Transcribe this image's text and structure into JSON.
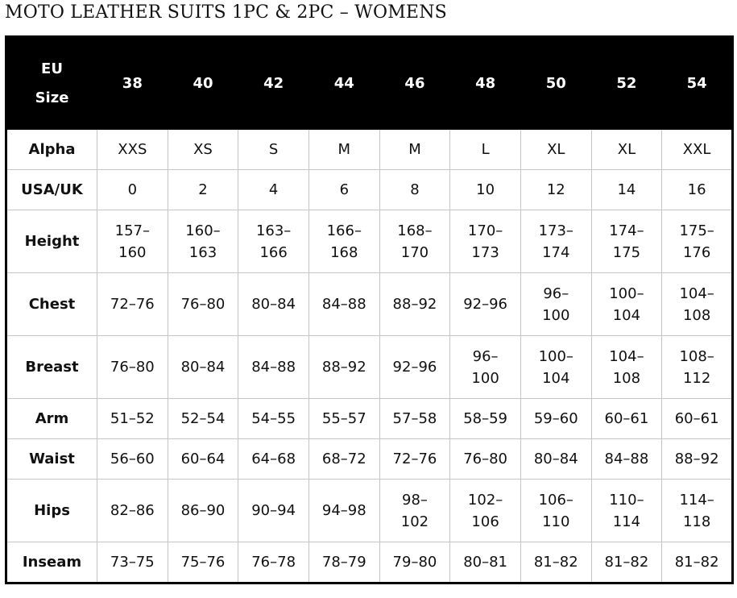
{
  "title": "MOTO LEATHER SUITS 1PC & 2PC – WOMENS",
  "header": {
    "label_line1": "EU",
    "label_line2": "Size",
    "sizes": [
      "38",
      "40",
      "42",
      "44",
      "46",
      "48",
      "50",
      "52",
      "54"
    ]
  },
  "rows": [
    {
      "label": "Alpha",
      "values": [
        "XXS",
        "XS",
        "S",
        "M",
        "M",
        "L",
        "XL",
        "XL",
        "XXL"
      ]
    },
    {
      "label": "USA/UK",
      "values": [
        "0",
        "2",
        "4",
        "6",
        "8",
        "10",
        "12",
        "14",
        "16"
      ]
    },
    {
      "label": "Height",
      "values": [
        "157–160",
        "160–163",
        "163–166",
        "166–168",
        "168–170",
        "170–173",
        "173–174",
        "174–175",
        "175–176"
      ]
    },
    {
      "label": "Chest",
      "values": [
        "72–76",
        "76–80",
        "80–84",
        "84–88",
        "88–92",
        "92–96",
        "96–100",
        "100–104",
        "104–108"
      ]
    },
    {
      "label": "Breast",
      "values": [
        "76–80",
        "80–84",
        "84–88",
        "88–92",
        "92–96",
        "96–100",
        "100–104",
        "104–108",
        "108–112"
      ]
    },
    {
      "label": "Arm",
      "values": [
        "51–52",
        "52–54",
        "54–55",
        "55–57",
        "57–58",
        "58–59",
        "59–60",
        "60–61",
        "60–61"
      ]
    },
    {
      "label": "Waist",
      "values": [
        "56–60",
        "60–64",
        "64–68",
        "68–72",
        "72–76",
        "76–80",
        "80–84",
        "84–88",
        "88–92"
      ]
    },
    {
      "label": "Hips",
      "values": [
        "82–86",
        "86–90",
        "90–94",
        "94–98",
        "98–102",
        "102–106",
        "106–110",
        "110–114",
        "114–118"
      ]
    },
    {
      "label": "Inseam",
      "values": [
        "73–75",
        "75–76",
        "76–78",
        "78–79",
        "79–80",
        "80–81",
        "81–82",
        "81–82",
        "81–82"
      ]
    }
  ]
}
